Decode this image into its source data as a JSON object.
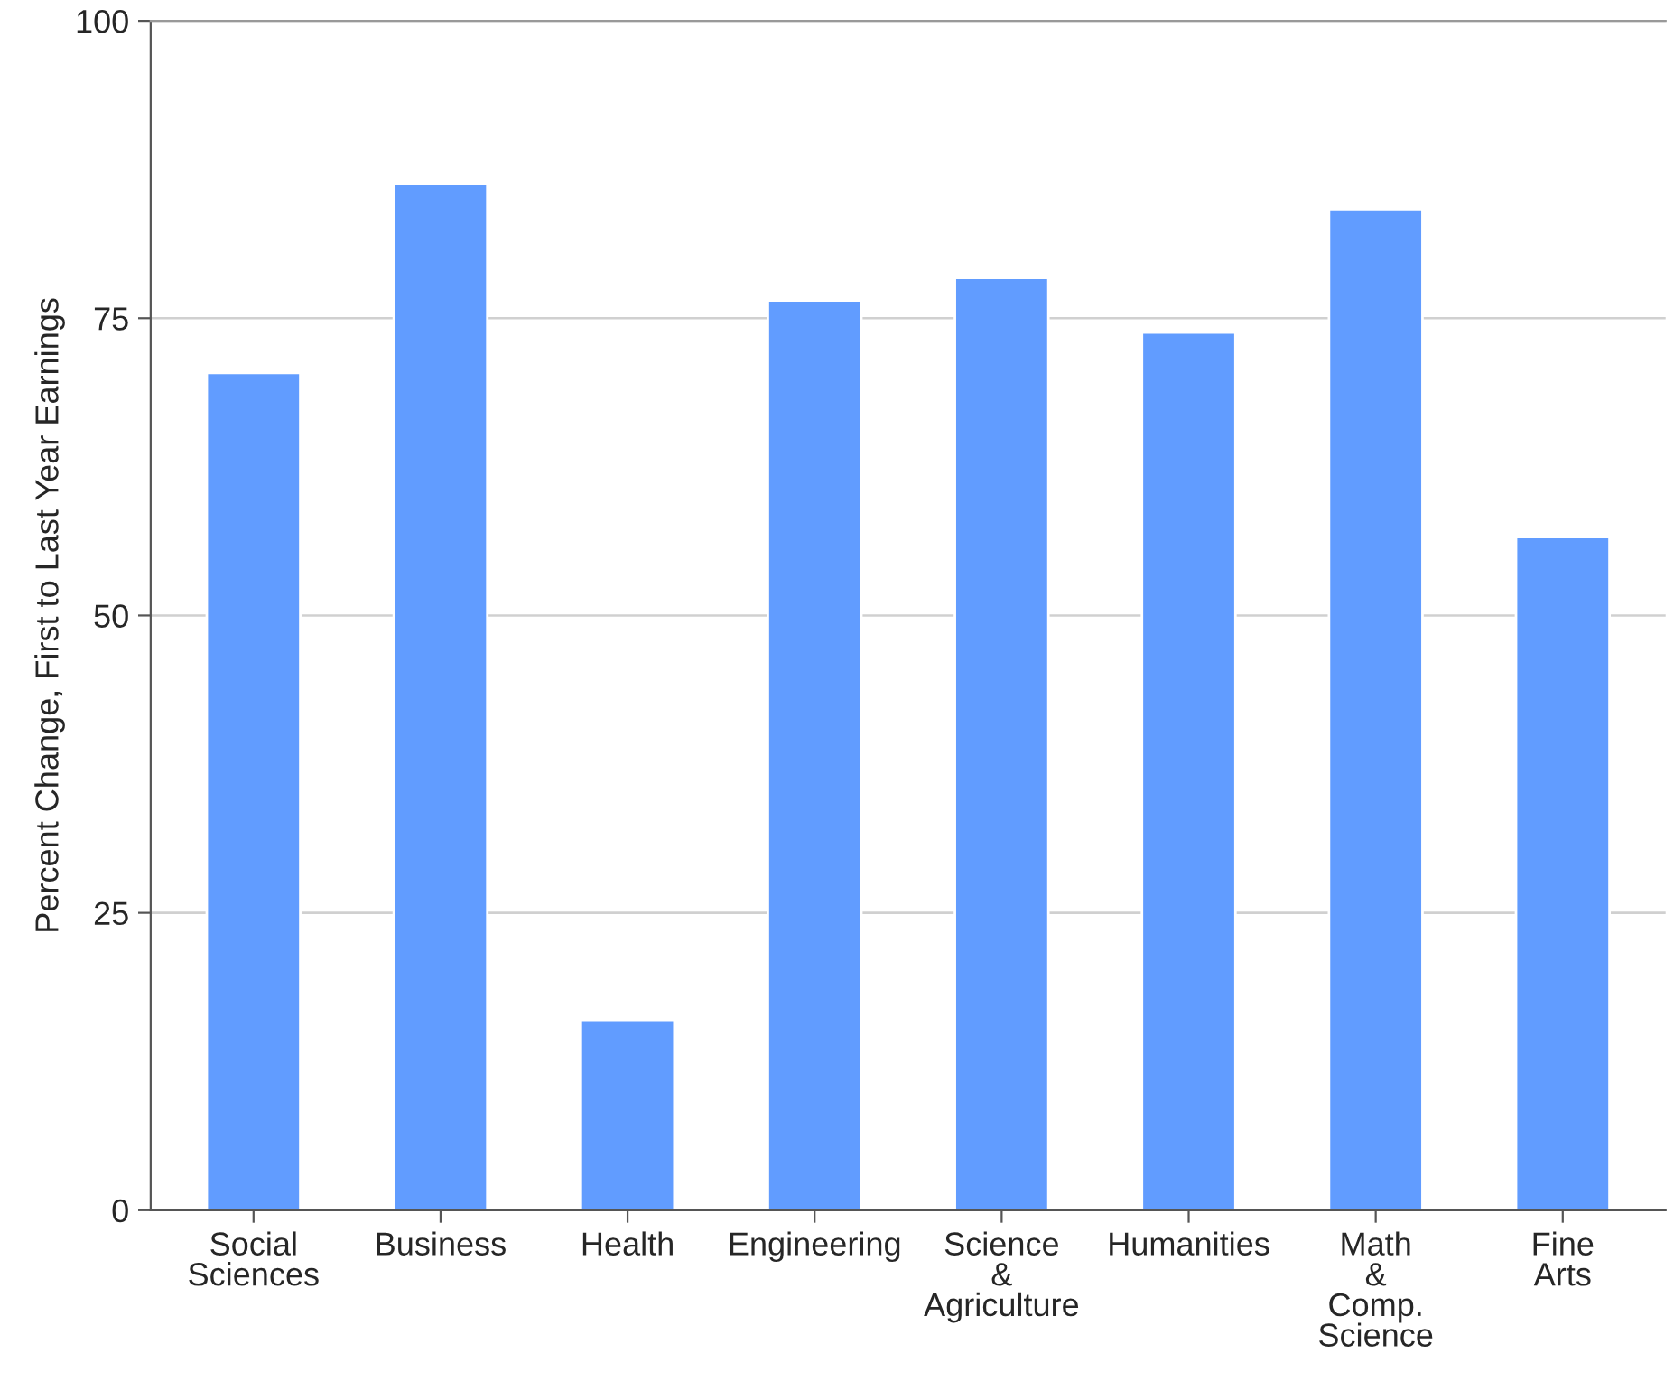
{
  "chart_data": {
    "type": "bar",
    "ylabel": "Percent Change, First to Last Year Earnings",
    "categories": [
      "Social\nSciences",
      "Business",
      "Health",
      "Engineering",
      "Science\n&\nAgriculture",
      "Humanities",
      "Math\n&\nComp.\nScience",
      "Fine\nArts"
    ],
    "values": [
      70.4,
      86.3,
      16.0,
      76.5,
      78.4,
      73.8,
      84.1,
      56.6
    ],
    "color": "#619cff",
    "ylim": [
      0,
      100
    ],
    "yticks": [
      0,
      25,
      50,
      75,
      100
    ],
    "grid": "y"
  }
}
